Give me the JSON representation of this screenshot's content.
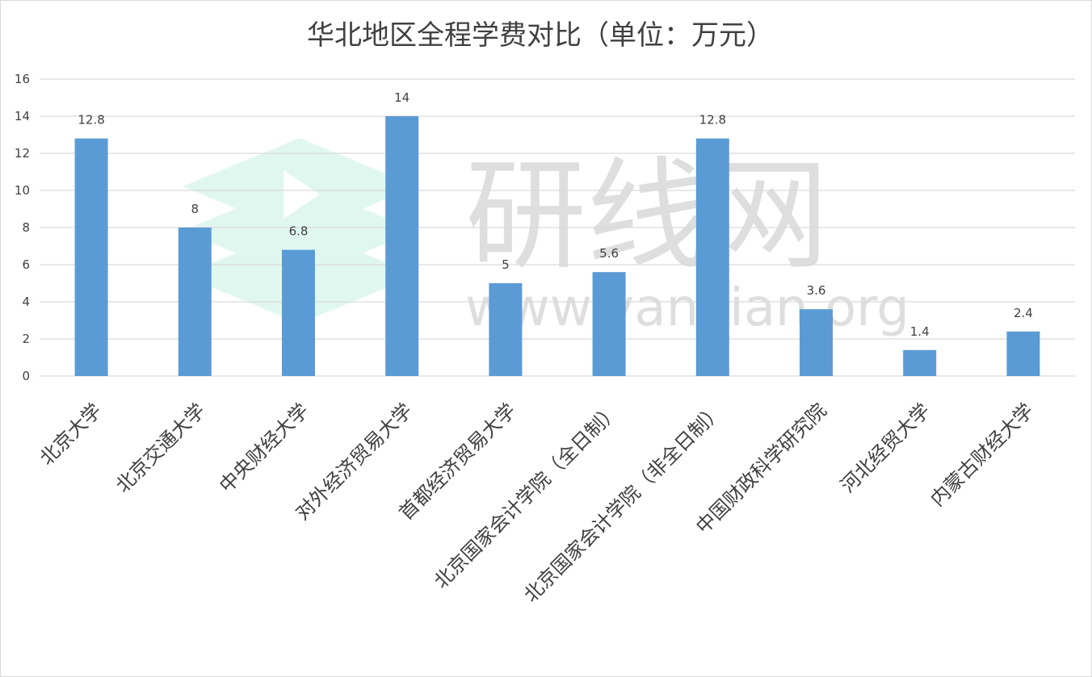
{
  "chart_data": {
    "type": "bar",
    "title": "华北地区全程学费对比（单位：万元）",
    "categories": [
      "北京大学",
      "北京交通大学",
      "中央财经大学",
      "对外经济贸易大学",
      "首都经济贸易大学",
      "北京国家会计学院（全日制）",
      "北京国家会计学院（非全日制）",
      "中国财政科学研究院",
      "河北经贸大学",
      "内蒙古财经大学"
    ],
    "values": [
      12.8,
      8,
      6.8,
      14,
      5,
      5.6,
      12.8,
      3.6,
      1.4,
      2.4
    ],
    "data_labels": [
      "12.8",
      "8",
      "6.8",
      "14",
      "5",
      "5.6",
      "12.8",
      "3.6",
      "1.4",
      "2.4"
    ],
    "ylim": [
      0,
      16
    ],
    "yticks": [
      0,
      2,
      4,
      6,
      8,
      10,
      12,
      14,
      16
    ],
    "grid": true,
    "bar_color": "#5b9bd5",
    "grid_color": "#d9d9d9"
  },
  "watermark": {
    "text": "研线网",
    "url": "www.yanxian.org",
    "logo": "yanxian-logo-icon"
  }
}
